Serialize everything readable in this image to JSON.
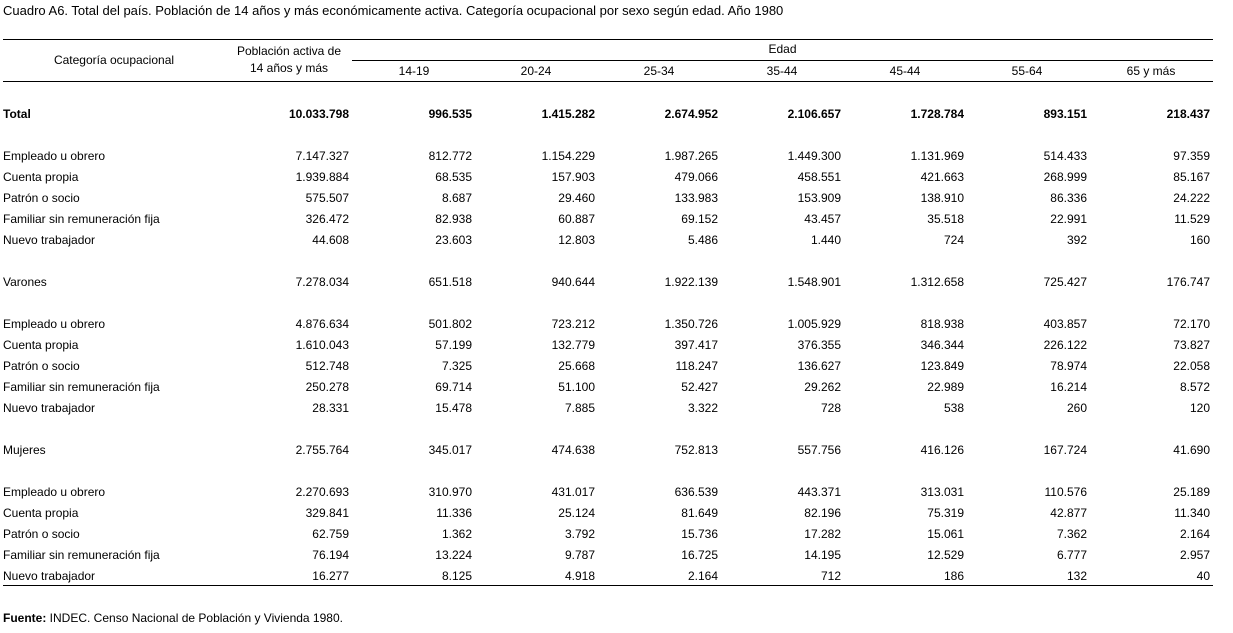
{
  "title": "Cuadro A6. Total del país. Población de 14 años y más económicamente activa. Categoría ocupacional por sexo según edad. Año 1980",
  "header": {
    "category": "Categoría ocupacional",
    "population_line1": "Población activa de",
    "population_line2": "14 años y más",
    "edad": "Edad",
    "ages": [
      "14-19",
      "20-24",
      "25-34",
      "35-44",
      "45-44",
      "55-64",
      "65 y más"
    ]
  },
  "rows": [
    {
      "label": "Total",
      "bold": true,
      "values": [
        "10.033.798",
        "996.535",
        "1.415.282",
        "2.674.952",
        "2.106.657",
        "1.728.784",
        "893.151",
        "218.437"
      ]
    },
    {
      "label": "Empleado u obrero",
      "values": [
        "7.147.327",
        "812.772",
        "1.154.229",
        "1.987.265",
        "1.449.300",
        "1.131.969",
        "514.433",
        "97.359"
      ]
    },
    {
      "label": "Cuenta propia",
      "values": [
        "1.939.884",
        "68.535",
        "157.903",
        "479.066",
        "458.551",
        "421.663",
        "268.999",
        "85.167"
      ]
    },
    {
      "label": "Patrón o socio",
      "values": [
        "575.507",
        "8.687",
        "29.460",
        "133.983",
        "153.909",
        "138.910",
        "86.336",
        "24.222"
      ]
    },
    {
      "label": "Familiar sin remuneración fija",
      "values": [
        "326.472",
        "82.938",
        "60.887",
        "69.152",
        "43.457",
        "35.518",
        "22.991",
        "11.529"
      ]
    },
    {
      "label": "Nuevo trabajador",
      "values": [
        "44.608",
        "23.603",
        "12.803",
        "5.486",
        "1.440",
        "724",
        "392",
        "160"
      ]
    },
    {
      "label": "Varones",
      "values": [
        "7.278.034",
        "651.518",
        "940.644",
        "1.922.139",
        "1.548.901",
        "1.312.658",
        "725.427",
        "176.747"
      ]
    },
    {
      "label": "Empleado u obrero",
      "values": [
        "4.876.634",
        "501.802",
        "723.212",
        "1.350.726",
        "1.005.929",
        "818.938",
        "403.857",
        "72.170"
      ]
    },
    {
      "label": "Cuenta propia",
      "values": [
        "1.610.043",
        "57.199",
        "132.779",
        "397.417",
        "376.355",
        "346.344",
        "226.122",
        "73.827"
      ]
    },
    {
      "label": "Patrón o socio",
      "values": [
        "512.748",
        "7.325",
        "25.668",
        "118.247",
        "136.627",
        "123.849",
        "78.974",
        "22.058"
      ]
    },
    {
      "label": "Familiar sin remuneración fija",
      "values": [
        "250.278",
        "69.714",
        "51.100",
        "52.427",
        "29.262",
        "22.989",
        "16.214",
        "8.572"
      ]
    },
    {
      "label": "Nuevo trabajador",
      "values": [
        "28.331",
        "15.478",
        "7.885",
        "3.322",
        "728",
        "538",
        "260",
        "120"
      ]
    },
    {
      "label": "Mujeres",
      "values": [
        "2.755.764",
        "345.017",
        "474.638",
        "752.813",
        "557.756",
        "416.126",
        "167.724",
        "41.690"
      ]
    },
    {
      "label": "Empleado u obrero",
      "values": [
        "2.270.693",
        "310.970",
        "431.017",
        "636.539",
        "443.371",
        "313.031",
        "110.576",
        "25.189"
      ]
    },
    {
      "label": "Cuenta propia",
      "values": [
        "329.841",
        "11.336",
        "25.124",
        "81.649",
        "82.196",
        "75.319",
        "42.877",
        "11.340"
      ]
    },
    {
      "label": "Patrón o socio",
      "values": [
        "62.759",
        "1.362",
        "3.792",
        "15.736",
        "17.282",
        "15.061",
        "7.362",
        "2.164"
      ]
    },
    {
      "label": "Familiar sin remuneración fija",
      "values": [
        "76.194",
        "13.224",
        "9.787",
        "16.725",
        "14.195",
        "12.529",
        "6.777",
        "2.957"
      ]
    },
    {
      "label": "Nuevo trabajador",
      "values": [
        "16.277",
        "8.125",
        "4.918",
        "2.164",
        "712",
        "186",
        "132",
        "40"
      ]
    }
  ],
  "source_label": "Fuente:",
  "source_text": " INDEC. Censo Nacional de Población y Vivienda 1980."
}
